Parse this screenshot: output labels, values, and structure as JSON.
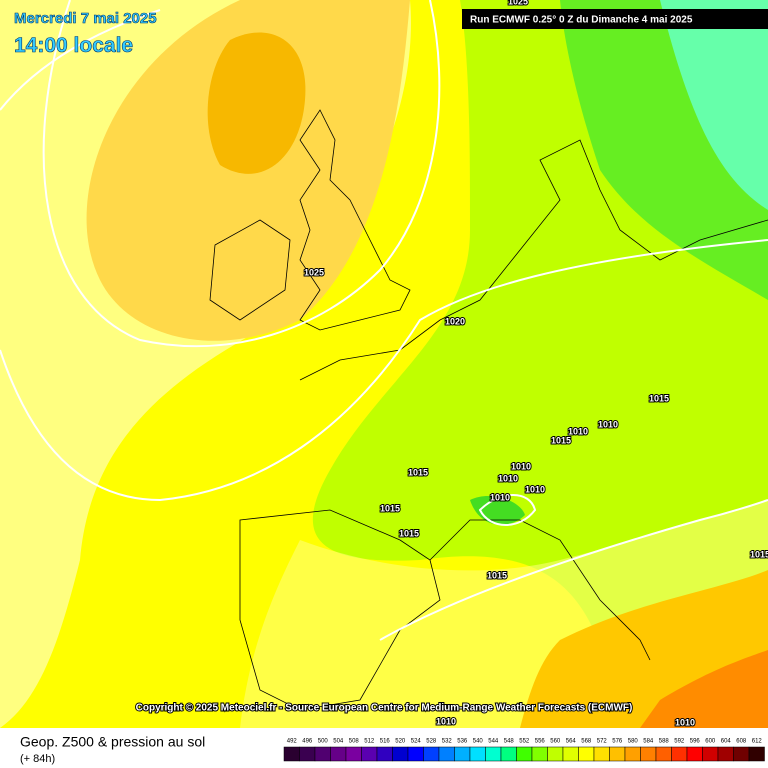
{
  "header": {
    "date": "Mercredi 7 mai 2025",
    "local_time": "14:00 locale",
    "run": "Run ECMWF 0.25° 0 Z du Dimanche 4 mai 2025"
  },
  "map": {
    "isobar_labels": [
      "1025",
      "1020",
      "1025",
      "1015",
      "1010",
      "1010",
      "1015",
      "1015",
      "1010",
      "1010",
      "1010",
      "1010",
      "1015",
      "1015",
      "1015",
      "1015",
      "1010",
      "1010"
    ],
    "copyright": "Copyright © 2025 Meteociel.fr - Source European Centre for Medium-Range Weather Forecasts (ECMWF)"
  },
  "footer": {
    "title": "Geop. Z500 & pression au sol",
    "lead": "(+ 84h)",
    "scale": [
      492,
      496,
      500,
      504,
      508,
      512,
      516,
      520,
      524,
      528,
      532,
      536,
      540,
      544,
      548,
      552,
      556,
      560,
      564,
      568,
      572,
      576,
      580,
      584,
      588,
      592,
      596,
      600,
      604,
      608,
      612
    ]
  }
}
